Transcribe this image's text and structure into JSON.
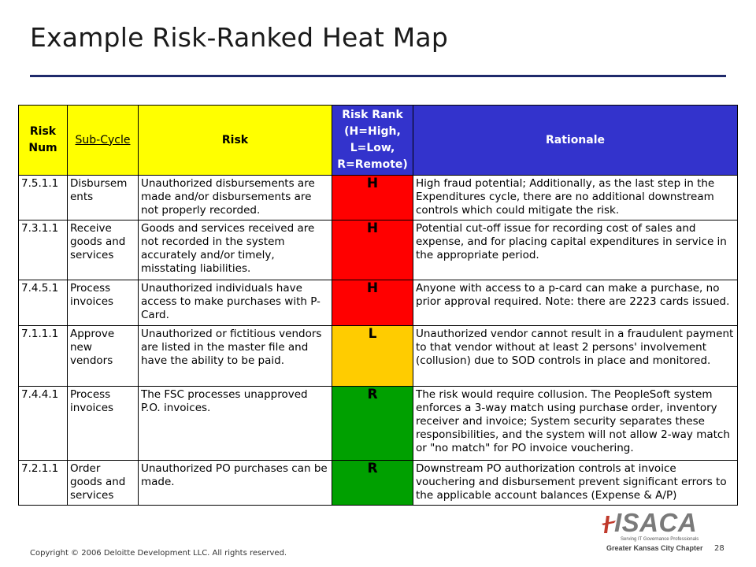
{
  "slide": {
    "title": "Example Risk-Ranked Heat Map",
    "copyright": "Copyright © 2006 Deloitte Development LLC. All rights reserved.",
    "page_number": "28"
  },
  "logo": {
    "text": "ISACA",
    "tagline": "Serving IT Governance Professionals",
    "chapter": "Greater Kansas City Chapter"
  },
  "table": {
    "headers": {
      "risk_num": "Risk Num",
      "sub_cycle": "Sub-Cycle",
      "risk": "Risk",
      "risk_rank": "Risk Rank (H=High, L=Low, R=Remote)",
      "rationale": "Rationale"
    },
    "rows": [
      {
        "num": "7.5.1.1",
        "sub_cycle": "Disbursem ents",
        "risk": "Unauthorized disbursements are made and/or disbursements are not properly recorded.",
        "rank": "H",
        "rationale": "High fraud potential; Additionally, as the last step in the Expenditures cycle, there are no additional downstream controls which could mitigate the risk."
      },
      {
        "num": "7.3.1.1",
        "sub_cycle": "Receive goods and services",
        "risk": "Goods and services received are not recorded in the system accurately and/or timely, misstating liabilities.",
        "rank": "H",
        "rationale": "Potential cut-off issue for recording cost of sales and expense, and for placing capital expenditures in service in the appropriate period."
      },
      {
        "num": "7.4.5.1",
        "sub_cycle": "Process invoices",
        "risk": "Unauthorized individuals have access to make purchases with P-Card.",
        "rank": "H",
        "rationale": "Anyone with access to a p-card can make a purchase, no prior approval required.  Note: there are 2223 cards issued."
      },
      {
        "num": "7.1.1.1",
        "sub_cycle": "Approve new vendors",
        "risk": "Unauthorized or fictitious vendors are listed in the master file and have the ability to be paid.",
        "rank": "L",
        "rationale": "Unauthorized vendor cannot result in a fraudulent payment to that vendor without at least 2 persons' involvement (collusion) due to SOD controls in place and monitored."
      },
      {
        "num": "7.4.4.1",
        "sub_cycle": "Process invoices",
        "risk": "The FSC processes unapproved P.O. invoices.",
        "rank": "R",
        "rationale": "The risk would require collusion.  The PeopleSoft system enforces a 3-way match using purchase order, inventory receiver and invoice; System security separates these responsibilities, and the system will not allow 2-way match or \"no match\" for PO invoice vouchering."
      },
      {
        "num": "7.2.1.1",
        "sub_cycle": "Order goods and services",
        "risk": "Unauthorized PO purchases can be made.",
        "rank": "R",
        "rationale": "Downstream PO authorization controls at invoice vouchering and disbursement prevent significant errors to the applicable account balances (Expense & A/P)"
      }
    ]
  },
  "colors": {
    "header_yellow": "#ffff00",
    "header_blue": "#3333cc",
    "rank_high": "#ff0000",
    "rank_low": "#ffcc00",
    "rank_remote": "#00a000",
    "title_rule": "#1f2a6b"
  }
}
